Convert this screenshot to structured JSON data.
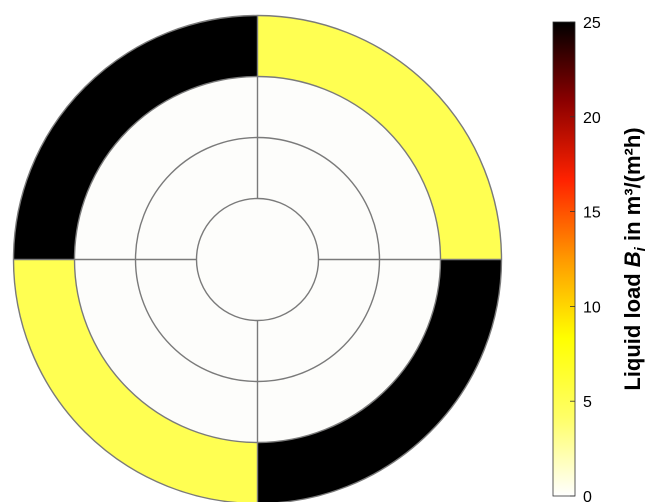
{
  "chart_data": {
    "type": "heatmap",
    "subtype": "polar-sector-map",
    "title": "",
    "rings": 4,
    "sectors": 4,
    "sector_order": [
      "top-right",
      "bottom-right",
      "bottom-left",
      "top-left"
    ],
    "values_by_ring": [
      [
        0,
        0,
        0,
        0
      ],
      [
        0,
        0,
        0,
        0
      ],
      [
        0,
        0,
        0,
        0
      ],
      [
        5,
        25,
        5,
        25
      ]
    ],
    "colorbar": {
      "label_prefix": "Liquid load ",
      "label_symbol": "B",
      "label_subscript": "i",
      "label_unit": " in m³/(m²h)",
      "min": 0,
      "max": 25,
      "ticks": [
        "0",
        "5",
        "10",
        "15",
        "20",
        "25"
      ],
      "colormap": "hot",
      "colors": [
        "#ffffff",
        "#ffff66",
        "#ffff00",
        "#ff9900",
        "#ff2200",
        "#8b0000",
        "#000000"
      ]
    },
    "grid": true,
    "grid_color": "#7a7a7a"
  }
}
